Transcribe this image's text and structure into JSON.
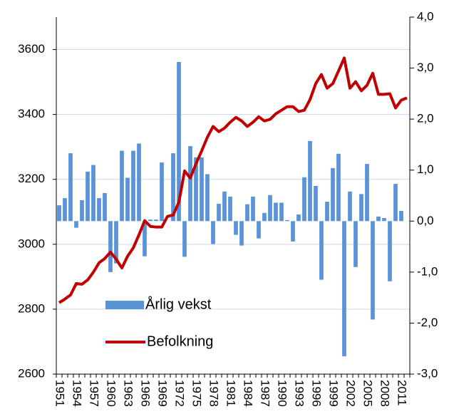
{
  "chart_data": {
    "type": "combo",
    "categories": [
      "1951",
      null,
      null,
      "1954",
      null,
      null,
      "1957",
      null,
      null,
      "1960",
      null,
      null,
      "1963",
      null,
      null,
      "1966",
      null,
      null,
      "1969",
      null,
      null,
      "1972",
      null,
      null,
      "1975",
      null,
      null,
      "1978",
      null,
      null,
      "1981",
      null,
      null,
      "1984",
      null,
      null,
      "1987",
      null,
      null,
      "1990",
      null,
      null,
      "1993",
      null,
      null,
      "1996",
      null,
      null,
      "1999",
      null,
      null,
      "2002",
      null,
      null,
      "2005",
      null,
      null,
      "2008",
      null,
      null,
      "2011",
      null
    ],
    "series": [
      {
        "name": "Årlig vekst",
        "type": "bar",
        "axis": "y2",
        "color": "#5b94d6",
        "values": [
          0.31,
          0.45,
          1.33,
          -0.13,
          0.41,
          0.97,
          1.1,
          0.45,
          0.55,
          -1.0,
          -0.83,
          1.38,
          0.85,
          1.38,
          1.52,
          -0.69,
          0.03,
          0.03,
          1.15,
          0.0,
          1.33,
          3.12,
          -0.7,
          1.47,
          1.25,
          1.25,
          0.92,
          -0.45,
          0.34,
          0.58,
          0.48,
          -0.27,
          -0.48,
          0.33,
          0.48,
          -0.34,
          0.16,
          0.51,
          0.36,
          0.36,
          0.02,
          -0.4,
          0.13,
          0.86,
          1.57,
          0.69,
          -1.15,
          0.38,
          1.04,
          1.32,
          -2.65,
          0.58,
          -0.9,
          0.53,
          1.12,
          -1.93,
          0.09,
          0.06,
          -1.18,
          0.73,
          0.2,
          null
        ]
      },
      {
        "name": "Befolkning",
        "type": "line",
        "axis": "y",
        "color": "#c00000",
        "values": [
          2820,
          2831,
          2844,
          2879,
          2877,
          2890,
          2914,
          2943,
          2956,
          2976,
          2954,
          2927,
          2963,
          2989,
          3029,
          3073,
          3055,
          3053,
          3053,
          3086,
          3090,
          3130,
          3226,
          3204,
          3248,
          3288,
          3330,
          3363,
          3347,
          3358,
          3376,
          3391,
          3380,
          3363,
          3376,
          3393,
          3380,
          3385,
          3402,
          3413,
          3424,
          3424,
          3409,
          3413,
          3446,
          3495,
          3523,
          3481,
          3495,
          3534,
          3574,
          3481,
          3501,
          3473,
          3490,
          3527,
          3462,
          3462,
          3464,
          3420,
          3444,
          3451
        ]
      }
    ],
    "ylim": [
      2600,
      3700
    ],
    "yticks": [
      2600,
      2800,
      3000,
      3200,
      3400,
      3600
    ],
    "y2lim": [
      -3,
      4
    ],
    "y2ticks": [
      {
        "value": -3,
        "label": "-3,0"
      },
      {
        "value": -2,
        "label": "-2,0"
      },
      {
        "value": -1,
        "label": "-1,0"
      },
      {
        "value": 0,
        "label": "0,0"
      },
      {
        "value": 1,
        "label": "1,0"
      },
      {
        "value": 2,
        "label": "2,0"
      },
      {
        "value": 3,
        "label": "3,0"
      },
      {
        "value": 4,
        "label": "4,0"
      }
    ],
    "grid": true
  }
}
